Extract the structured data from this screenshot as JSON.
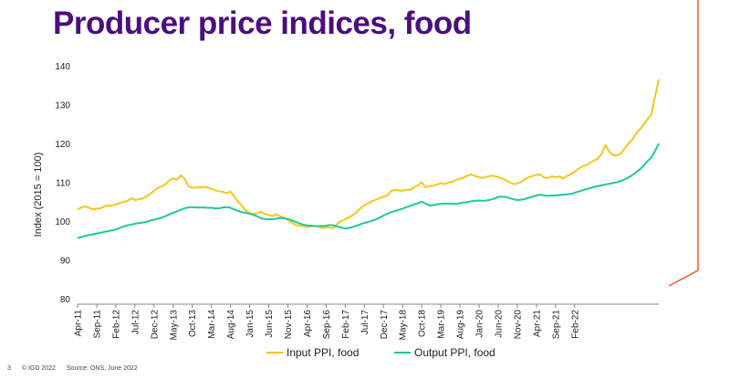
{
  "slide": {
    "title": "Producer price indices, food",
    "page_number": "3",
    "copyright": "© IGD 2022",
    "source": "Source: ONS, June 2022"
  },
  "colors": {
    "title": "#4b0e7e",
    "input": "#f2c81b",
    "output": "#1fc99a",
    "accent_line": "#f0562a"
  },
  "chart_data": {
    "type": "line",
    "title": "",
    "xlabel": "",
    "ylabel": "Index (2015 = 100)",
    "ylim": [
      80,
      140
    ],
    "yticks": [
      80,
      90,
      100,
      110,
      120,
      130,
      140
    ],
    "grid": false,
    "legend": "bottom",
    "x_start": "Apr-11",
    "x_end": "May-22",
    "x_tick_labels": [
      "Apr-11",
      "Sep-11",
      "Feb-12",
      "Jul-12",
      "Dec-12",
      "May-13",
      "Oct-13",
      "Mar-14",
      "Aug-14",
      "Jan-15",
      "Jun-15",
      "Nov-15",
      "Apr-16",
      "Sep-16",
      "Feb-17",
      "Jul-17",
      "Dec-17",
      "May-18",
      "Oct-18",
      "Mar-19",
      "Aug-19",
      "Jan-20",
      "Jun-20",
      "Nov-20",
      "Apr-21",
      "Sep-21",
      "Feb-22"
    ],
    "series": [
      {
        "name": "Input PPI, food",
        "values": [
          103.0,
          103.5,
          103.8,
          103.4,
          103.0,
          103.2,
          103.3,
          103.8,
          104.0,
          103.9,
          104.3,
          104.6,
          105.0,
          105.1,
          105.9,
          105.4,
          105.6,
          105.8,
          106.3,
          107.0,
          107.8,
          108.6,
          108.9,
          109.5,
          110.5,
          111.0,
          110.7,
          111.8,
          110.9,
          109.0,
          108.6,
          108.6,
          108.7,
          108.8,
          108.6,
          108.3,
          107.9,
          107.7,
          107.5,
          107.2,
          107.6,
          106.3,
          105.0,
          103.9,
          102.7,
          102.1,
          101.8,
          102.0,
          102.4,
          101.8,
          101.6,
          101.3,
          101.8,
          101.2,
          100.9,
          100.3,
          99.6,
          99.0,
          98.8,
          98.7,
          98.5,
          98.6,
          98.8,
          98.5,
          98.2,
          98.4,
          98.3,
          98.2,
          99.4,
          100.0,
          100.5,
          101.0,
          101.5,
          102.3,
          103.3,
          104.1,
          104.6,
          105.1,
          105.5,
          105.9,
          106.3,
          106.6,
          107.8,
          108.0,
          107.9,
          107.8,
          108.1,
          108.0,
          108.7,
          109.2,
          110.0,
          108.7,
          109.0,
          109.1,
          109.4,
          109.8,
          109.5,
          109.9,
          110.1,
          110.6,
          110.9,
          111.2,
          111.8,
          112.0,
          111.6,
          111.3,
          111.1,
          111.4,
          111.7,
          111.6,
          111.3,
          111.0,
          110.5,
          110.0,
          109.5,
          109.7,
          110.1,
          110.8,
          111.3,
          111.6,
          111.9,
          112.0,
          111.2,
          111.1,
          111.5,
          111.3,
          111.5,
          111.0,
          111.6,
          112.1,
          112.7,
          113.5,
          114.1,
          114.4,
          115.0,
          115.6,
          116.0,
          117.2,
          119.6,
          118.0,
          117.0,
          116.9,
          117.3,
          118.6,
          119.9,
          121.0,
          122.4,
          123.6,
          124.8,
          126.2,
          127.3,
          132.0,
          136.5
        ]
      },
      {
        "name": "Output PPI, food",
        "values": [
          95.6,
          95.9,
          96.2,
          96.4,
          96.6,
          96.8,
          97.0,
          97.2,
          97.4,
          97.6,
          97.8,
          98.2,
          98.6,
          98.9,
          99.1,
          99.3,
          99.5,
          99.6,
          99.8,
          100.1,
          100.4,
          100.6,
          100.9,
          101.3,
          101.7,
          102.1,
          102.5,
          102.9,
          103.3,
          103.5,
          103.6,
          103.5,
          103.5,
          103.5,
          103.4,
          103.4,
          103.3,
          103.3,
          103.5,
          103.6,
          103.4,
          103.0,
          102.6,
          102.3,
          102.1,
          101.9,
          101.6,
          101.2,
          100.7,
          100.5,
          100.5,
          100.5,
          100.6,
          100.8,
          100.7,
          100.5,
          100.2,
          99.8,
          99.4,
          99.1,
          98.9,
          98.8,
          98.7,
          98.7,
          98.7,
          98.8,
          99.0,
          98.9,
          98.6,
          98.3,
          98.1,
          98.2,
          98.5,
          98.8,
          99.2,
          99.5,
          99.8,
          100.1,
          100.4,
          100.9,
          101.4,
          101.9,
          102.3,
          102.6,
          102.9,
          103.2,
          103.6,
          103.9,
          104.3,
          104.6,
          105.0,
          104.5,
          104.0,
          104.1,
          104.3,
          104.4,
          104.5,
          104.5,
          104.4,
          104.4,
          104.6,
          104.8,
          104.9,
          105.1,
          105.2,
          105.3,
          105.2,
          105.3,
          105.5,
          105.8,
          106.2,
          106.3,
          106.2,
          105.9,
          105.6,
          105.4,
          105.5,
          105.7,
          106.0,
          106.3,
          106.6,
          106.8,
          106.6,
          106.5,
          106.6,
          106.6,
          106.7,
          106.8,
          106.9,
          107.0,
          107.3,
          107.6,
          107.9,
          108.2,
          108.5,
          108.8,
          109.0,
          109.2,
          109.4,
          109.6,
          109.8,
          110.0,
          110.3,
          110.7,
          111.2,
          111.8,
          112.5,
          113.3,
          114.2,
          115.4,
          116.3,
          118.0,
          120.0
        ]
      }
    ]
  }
}
